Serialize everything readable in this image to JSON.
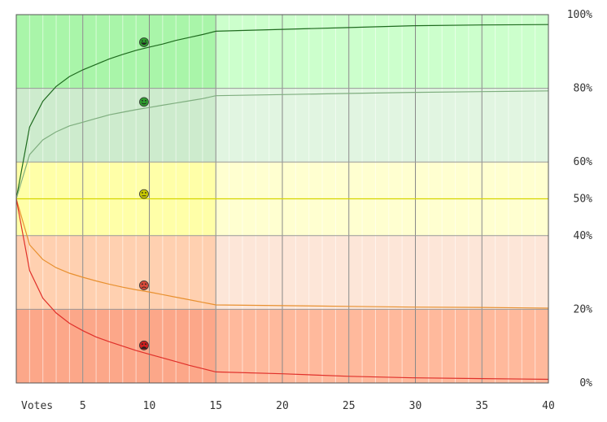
{
  "chart_data": {
    "type": "line",
    "xlabel": "Votes",
    "xlim": [
      0,
      40
    ],
    "ylim": [
      0,
      100
    ],
    "x_ticks": [
      5,
      10,
      15,
      20,
      25,
      30,
      35,
      40
    ],
    "y_ticks": [
      {
        "value": 100,
        "label": "100%"
      },
      {
        "value": 80,
        "label": "80%"
      },
      {
        "value": 60,
        "label": "60%"
      },
      {
        "value": 50,
        "label": "50%"
      },
      {
        "value": 40,
        "label": "40%"
      },
      {
        "value": 20,
        "label": "20%"
      },
      {
        "value": 0,
        "label": "0%"
      }
    ],
    "bands": [
      {
        "from": 80,
        "to": 100,
        "color_strong": "#a9f5a9",
        "color_light": "#ccffcc"
      },
      {
        "from": 60,
        "to": 80,
        "color_strong": "#cdebcd",
        "color_light": "#e1f5e1"
      },
      {
        "from": 40,
        "to": 60,
        "color_strong": "#ffffa8",
        "color_light": "#ffffd0"
      },
      {
        "from": 20,
        "to": 40,
        "color_strong": "#ffd0b0",
        "color_light": "#fde6d8"
      },
      {
        "from": 0,
        "to": 20,
        "color_strong": "#fca789",
        "color_light": "#ffb99c"
      }
    ],
    "highlight_until_x": 15,
    "series": [
      {
        "color": "#1f6b1f",
        "icon": "very-happy-face-icon",
        "icon_color": "#2e9e2e",
        "icon_at": [
          9.6,
          92.5
        ],
        "x": [
          0,
          1,
          2,
          3,
          4,
          5,
          6,
          7,
          8,
          9,
          10,
          11,
          12,
          13,
          14,
          15,
          20,
          25,
          30,
          35,
          40
        ],
        "y": [
          50,
          69.5,
          76.5,
          80.5,
          83.2,
          85.0,
          86.5,
          88.0,
          89.2,
          90.3,
          91.2,
          92.0,
          93.0,
          93.8,
          94.6,
          95.5,
          96.0,
          96.5,
          97.0,
          97.2,
          97.3
        ]
      },
      {
        "color": "#7fae7f",
        "icon": "happy-face-icon",
        "icon_color": "#2e9e2e",
        "icon_at": [
          9.6,
          76.3
        ],
        "x": [
          0,
          1,
          2,
          3,
          4,
          5,
          6,
          7,
          8,
          9,
          10,
          11,
          12,
          13,
          14,
          15,
          20,
          25,
          30,
          35,
          40
        ],
        "y": [
          50,
          62.0,
          66.0,
          68.2,
          69.8,
          70.8,
          71.8,
          72.8,
          73.5,
          74.2,
          74.8,
          75.4,
          76.0,
          76.6,
          77.2,
          78.0,
          78.3,
          78.6,
          78.9,
          79.1,
          79.3
        ]
      },
      {
        "color": "#d6d600",
        "icon": "neutral-face-icon",
        "icon_color": "#c9c900",
        "icon_at": [
          9.6,
          51.3
        ],
        "x": [
          0,
          40
        ],
        "y": [
          50,
          50
        ]
      },
      {
        "color": "#e8902f",
        "icon": "sad-face-icon",
        "icon_color": "#d94a3a",
        "icon_at": [
          9.6,
          26.5
        ],
        "x": [
          0,
          1,
          2,
          3,
          4,
          5,
          6,
          7,
          8,
          9,
          10,
          11,
          12,
          13,
          14,
          15,
          20,
          25,
          30,
          35,
          40
        ],
        "y": [
          50,
          37.5,
          33.5,
          31.3,
          29.8,
          28.7,
          27.7,
          26.8,
          26.0,
          25.3,
          24.7,
          24.0,
          23.3,
          22.6,
          21.9,
          21.2,
          21.0,
          20.8,
          20.6,
          20.5,
          20.3
        ]
      },
      {
        "color": "#e0302a",
        "icon": "very-sad-face-icon",
        "icon_color": "#cc1f1f",
        "icon_at": [
          9.6,
          10.2
        ],
        "x": [
          0,
          1,
          2,
          3,
          4,
          5,
          6,
          7,
          8,
          9,
          10,
          11,
          12,
          13,
          14,
          15,
          20,
          25,
          30,
          35,
          40
        ],
        "y": [
          50,
          30.5,
          23.0,
          19.0,
          16.2,
          14.2,
          12.5,
          11.2,
          10.0,
          8.8,
          7.8,
          6.8,
          5.8,
          4.8,
          3.9,
          3.0,
          2.5,
          1.8,
          1.4,
          1.2,
          1.0
        ]
      }
    ]
  }
}
